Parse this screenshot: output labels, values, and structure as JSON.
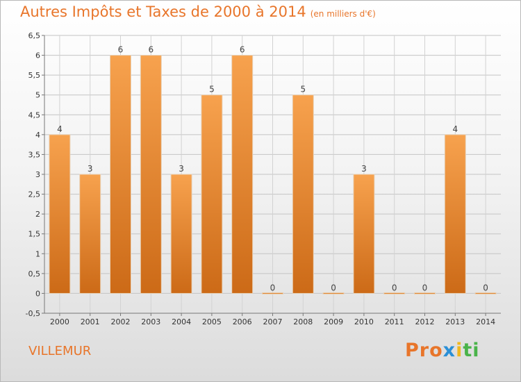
{
  "header": {
    "title": "Autres Impôts et Taxes de 2000 à 2014",
    "unit": "(en milliers d'€)"
  },
  "footer": {
    "place": "VILLEMUR",
    "logo_parts": [
      "Pro",
      "x",
      "i",
      "ti"
    ]
  },
  "colors": {
    "bar_top": "#f7a24e",
    "bar_bottom": "#cc6a17",
    "title": "#e8752a"
  },
  "chart_data": {
    "type": "bar",
    "title": "Autres Impôts et Taxes de 2000 à 2014",
    "categories": [
      "2000",
      "2001",
      "2002",
      "2003",
      "2004",
      "2005",
      "2006",
      "2007",
      "2008",
      "2009",
      "2010",
      "2011",
      "2012",
      "2013",
      "2014"
    ],
    "values": [
      4,
      3,
      6,
      6,
      3,
      5,
      6,
      0,
      5,
      0,
      3,
      0,
      0,
      4,
      0
    ],
    "ylim": [
      -0.5,
      6.5
    ],
    "yticks": [
      -0.5,
      0,
      0.5,
      1,
      1.5,
      2,
      2.5,
      3,
      3.5,
      4,
      4.5,
      5,
      5.5,
      6,
      6.5
    ],
    "ytick_labels": [
      "-0,5",
      "0",
      "0,5",
      "1",
      "1,5",
      "2",
      "2,5",
      "3",
      "3,5",
      "4",
      "4,5",
      "5",
      "5,5",
      "6",
      "6,5"
    ],
    "grid": true
  }
}
